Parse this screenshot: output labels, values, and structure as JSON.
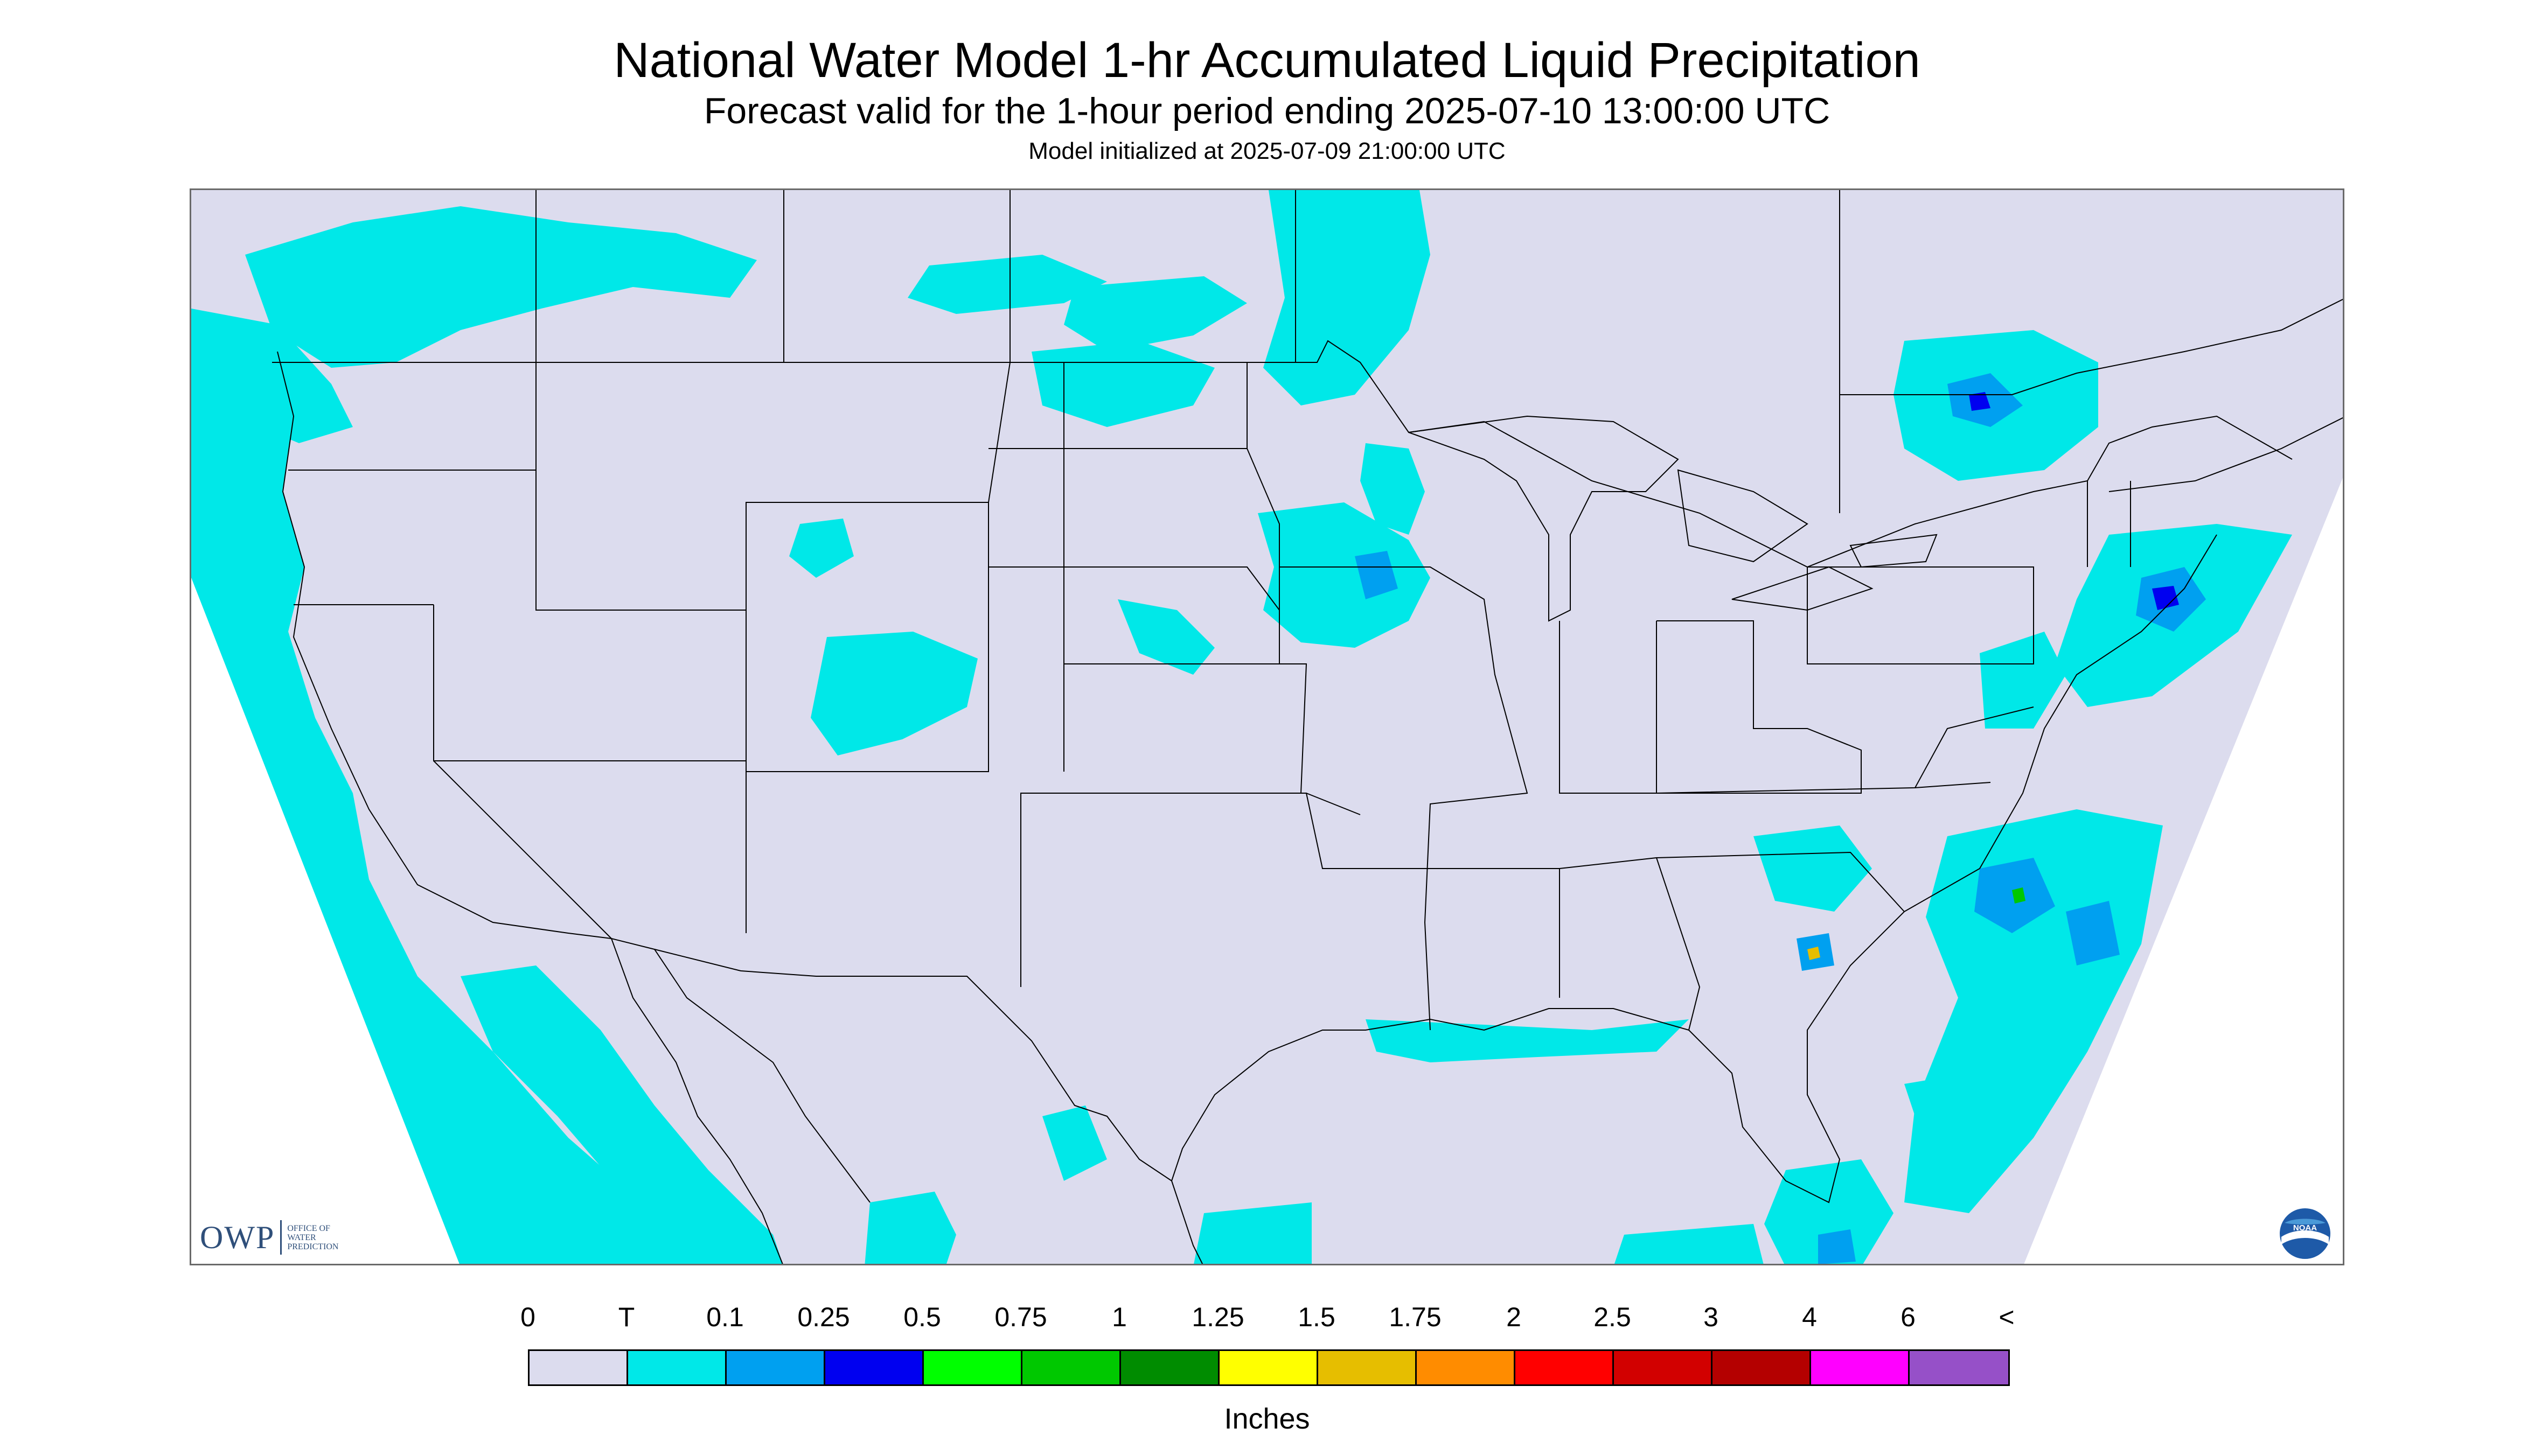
{
  "header": {
    "title": "National Water Model 1-hr Accumulated Liquid Precipitation",
    "subtitle": "Forecast valid for the 1-hour period ending 2025-07-10 13:00:00 UTC",
    "initialized": "Model initialized at 2025-07-09 21:00:00 UTC"
  },
  "logos": {
    "owp_abbrev": "OWP",
    "owp_line1": "OFFICE OF",
    "owp_line2": "WATER",
    "owp_line3": "PREDICTION",
    "noaa_text": "NOAA"
  },
  "colors": {
    "no_precip": "#dcdcee",
    "trace": "#00e8e8",
    "outside_domain": "#ffffff",
    "boundary": "#000000"
  },
  "legend": {
    "units": "Inches",
    "ticks": [
      "0",
      "T",
      "0.1",
      "0.25",
      "0.5",
      "0.75",
      "1",
      "1.25",
      "1.5",
      "1.75",
      "2",
      "2.5",
      "3",
      "4",
      "6",
      "<"
    ],
    "colors": [
      "#dcdcee",
      "#00e8e8",
      "#00a0f0",
      "#0000f0",
      "#00ff00",
      "#00c800",
      "#008c00",
      "#ffff00",
      "#e6be00",
      "#ff8c00",
      "#ff0000",
      "#d20000",
      "#b40000",
      "#ff00ff",
      "#9650c8"
    ]
  }
}
